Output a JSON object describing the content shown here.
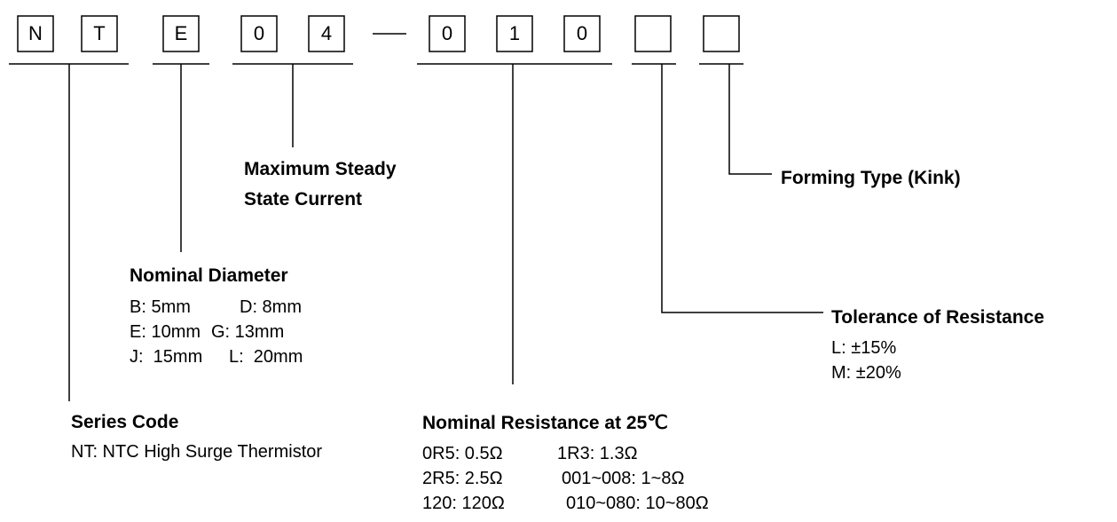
{
  "code_boxes": [
    "N",
    "T",
    "E",
    "0",
    "4",
    "0",
    "1",
    "0"
  ],
  "max_current": {
    "title_lines": [
      "Maximum Steady",
      "State Current"
    ]
  },
  "forming": {
    "title": "Forming Type (Kink)"
  },
  "diameter": {
    "title": "Nominal Diameter",
    "rows": [
      [
        "B: 5mm",
        "D: 8mm"
      ],
      [
        "E: 10mm",
        "G: 13mm"
      ],
      [
        "J:  15mm",
        "L:  20mm"
      ]
    ]
  },
  "tolerance": {
    "title": "Tolerance of Resistance",
    "rows": [
      "L: ±15%",
      "M: ±20%"
    ]
  },
  "series": {
    "title": "Series Code",
    "description": "NT: NTC High Surge Thermistor"
  },
  "resistance": {
    "title": "Nominal Resistance at 25℃",
    "rows": [
      [
        "0R5: 0.5Ω",
        "1R3: 1.3Ω"
      ],
      [
        "2R5: 2.5Ω",
        "001~008: 1~8Ω"
      ],
      [
        "120: 120Ω",
        "010~080: 10~80Ω"
      ]
    ]
  }
}
